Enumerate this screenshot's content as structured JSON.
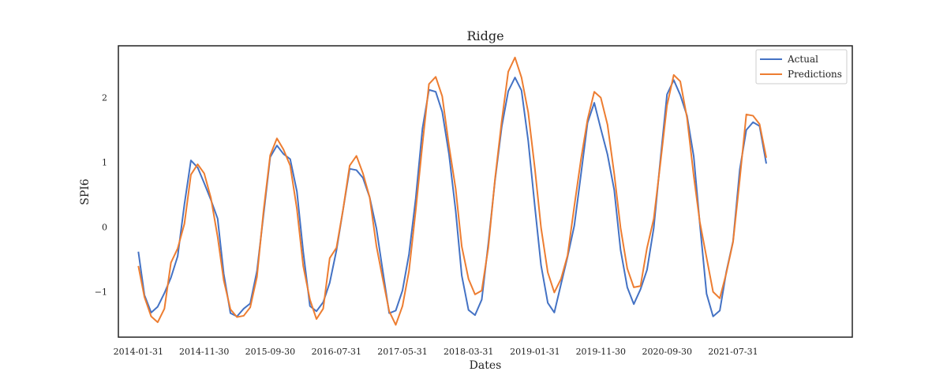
{
  "chart_data": {
    "type": "line",
    "title": "Ridge",
    "xlabel": "Dates",
    "ylabel": "SPI6",
    "ylim": [
      -1.7,
      2.8
    ],
    "yticks": [
      -1,
      0,
      1,
      2
    ],
    "ytick_labels": [
      "−1",
      "0",
      "1",
      "2"
    ],
    "xticks": [
      "2014-01-31",
      "2014-11-30",
      "2015-09-30",
      "2016-07-31",
      "2017-05-31",
      "2018-03-31",
      "2019-01-31",
      "2019-11-30",
      "2020-09-30",
      "2021-07-31"
    ],
    "x_start": "2014-01-31",
    "x_end": "2021-12-31",
    "x_range": [
      "2013-10-31",
      "2023-01-31"
    ],
    "grid": false,
    "legend_position": "top-right",
    "series": [
      {
        "name": "Actual",
        "color": "#4472c4",
        "values": [
          -0.38,
          -1.05,
          -1.32,
          -1.23,
          -1.02,
          -0.78,
          -0.45,
          0.35,
          1.03,
          0.92,
          0.68,
          0.42,
          0.13,
          -0.72,
          -1.33,
          -1.38,
          -1.26,
          -1.18,
          -0.68,
          0.21,
          1.08,
          1.26,
          1.13,
          1.05,
          0.55,
          -0.38,
          -1.22,
          -1.3,
          -1.16,
          -0.86,
          -0.36,
          0.28,
          0.9,
          0.88,
          0.76,
          0.46,
          -0.02,
          -0.65,
          -1.33,
          -1.29,
          -0.98,
          -0.42,
          0.44,
          1.52,
          2.12,
          2.09,
          1.78,
          1.13,
          0.25,
          -0.75,
          -1.28,
          -1.36,
          -1.12,
          -0.26,
          0.72,
          1.55,
          2.1,
          2.31,
          2.11,
          1.33,
          0.3,
          -0.59,
          -1.17,
          -1.32,
          -0.88,
          -0.46,
          0.02,
          0.82,
          1.61,
          1.92,
          1.52,
          1.12,
          0.57,
          -0.35,
          -0.93,
          -1.19,
          -0.96,
          -0.66,
          -0.01,
          1.06,
          2.05,
          2.27,
          2.04,
          1.72,
          1.09,
          0.05,
          -1.03,
          -1.38,
          -1.29,
          -0.69,
          -0.22,
          0.89,
          1.5,
          1.62,
          1.56,
          0.98
        ]
      },
      {
        "name": "Predictions",
        "color": "#ed7d31",
        "values": [
          -0.6,
          -1.08,
          -1.38,
          -1.47,
          -1.26,
          -0.55,
          -0.33,
          0.05,
          0.81,
          0.97,
          0.83,
          0.45,
          -0.15,
          -0.82,
          -1.27,
          -1.39,
          -1.37,
          -1.24,
          -0.77,
          0.27,
          1.11,
          1.37,
          1.2,
          0.95,
          0.28,
          -0.6,
          -1.12,
          -1.42,
          -1.26,
          -0.48,
          -0.32,
          0.28,
          0.95,
          1.1,
          0.83,
          0.46,
          -0.29,
          -0.78,
          -1.3,
          -1.51,
          -1.22,
          -0.68,
          0.26,
          1.28,
          2.21,
          2.32,
          2.02,
          1.26,
          0.59,
          -0.3,
          -0.8,
          -1.04,
          -0.98,
          -0.32,
          0.74,
          1.64,
          2.4,
          2.62,
          2.31,
          1.77,
          0.89,
          -0.01,
          -0.7,
          -1.01,
          -0.8,
          -0.44,
          0.32,
          1.05,
          1.66,
          2.09,
          2.0,
          1.58,
          0.82,
          -0.01,
          -0.64,
          -0.93,
          -0.91,
          -0.32,
          0.13,
          1.0,
          1.88,
          2.35,
          2.25,
          1.69,
          0.79,
          0.08,
          -0.47,
          -1.0,
          -1.1,
          -0.71,
          -0.23,
          0.74,
          1.74,
          1.72,
          1.59,
          1.07
        ]
      }
    ]
  }
}
